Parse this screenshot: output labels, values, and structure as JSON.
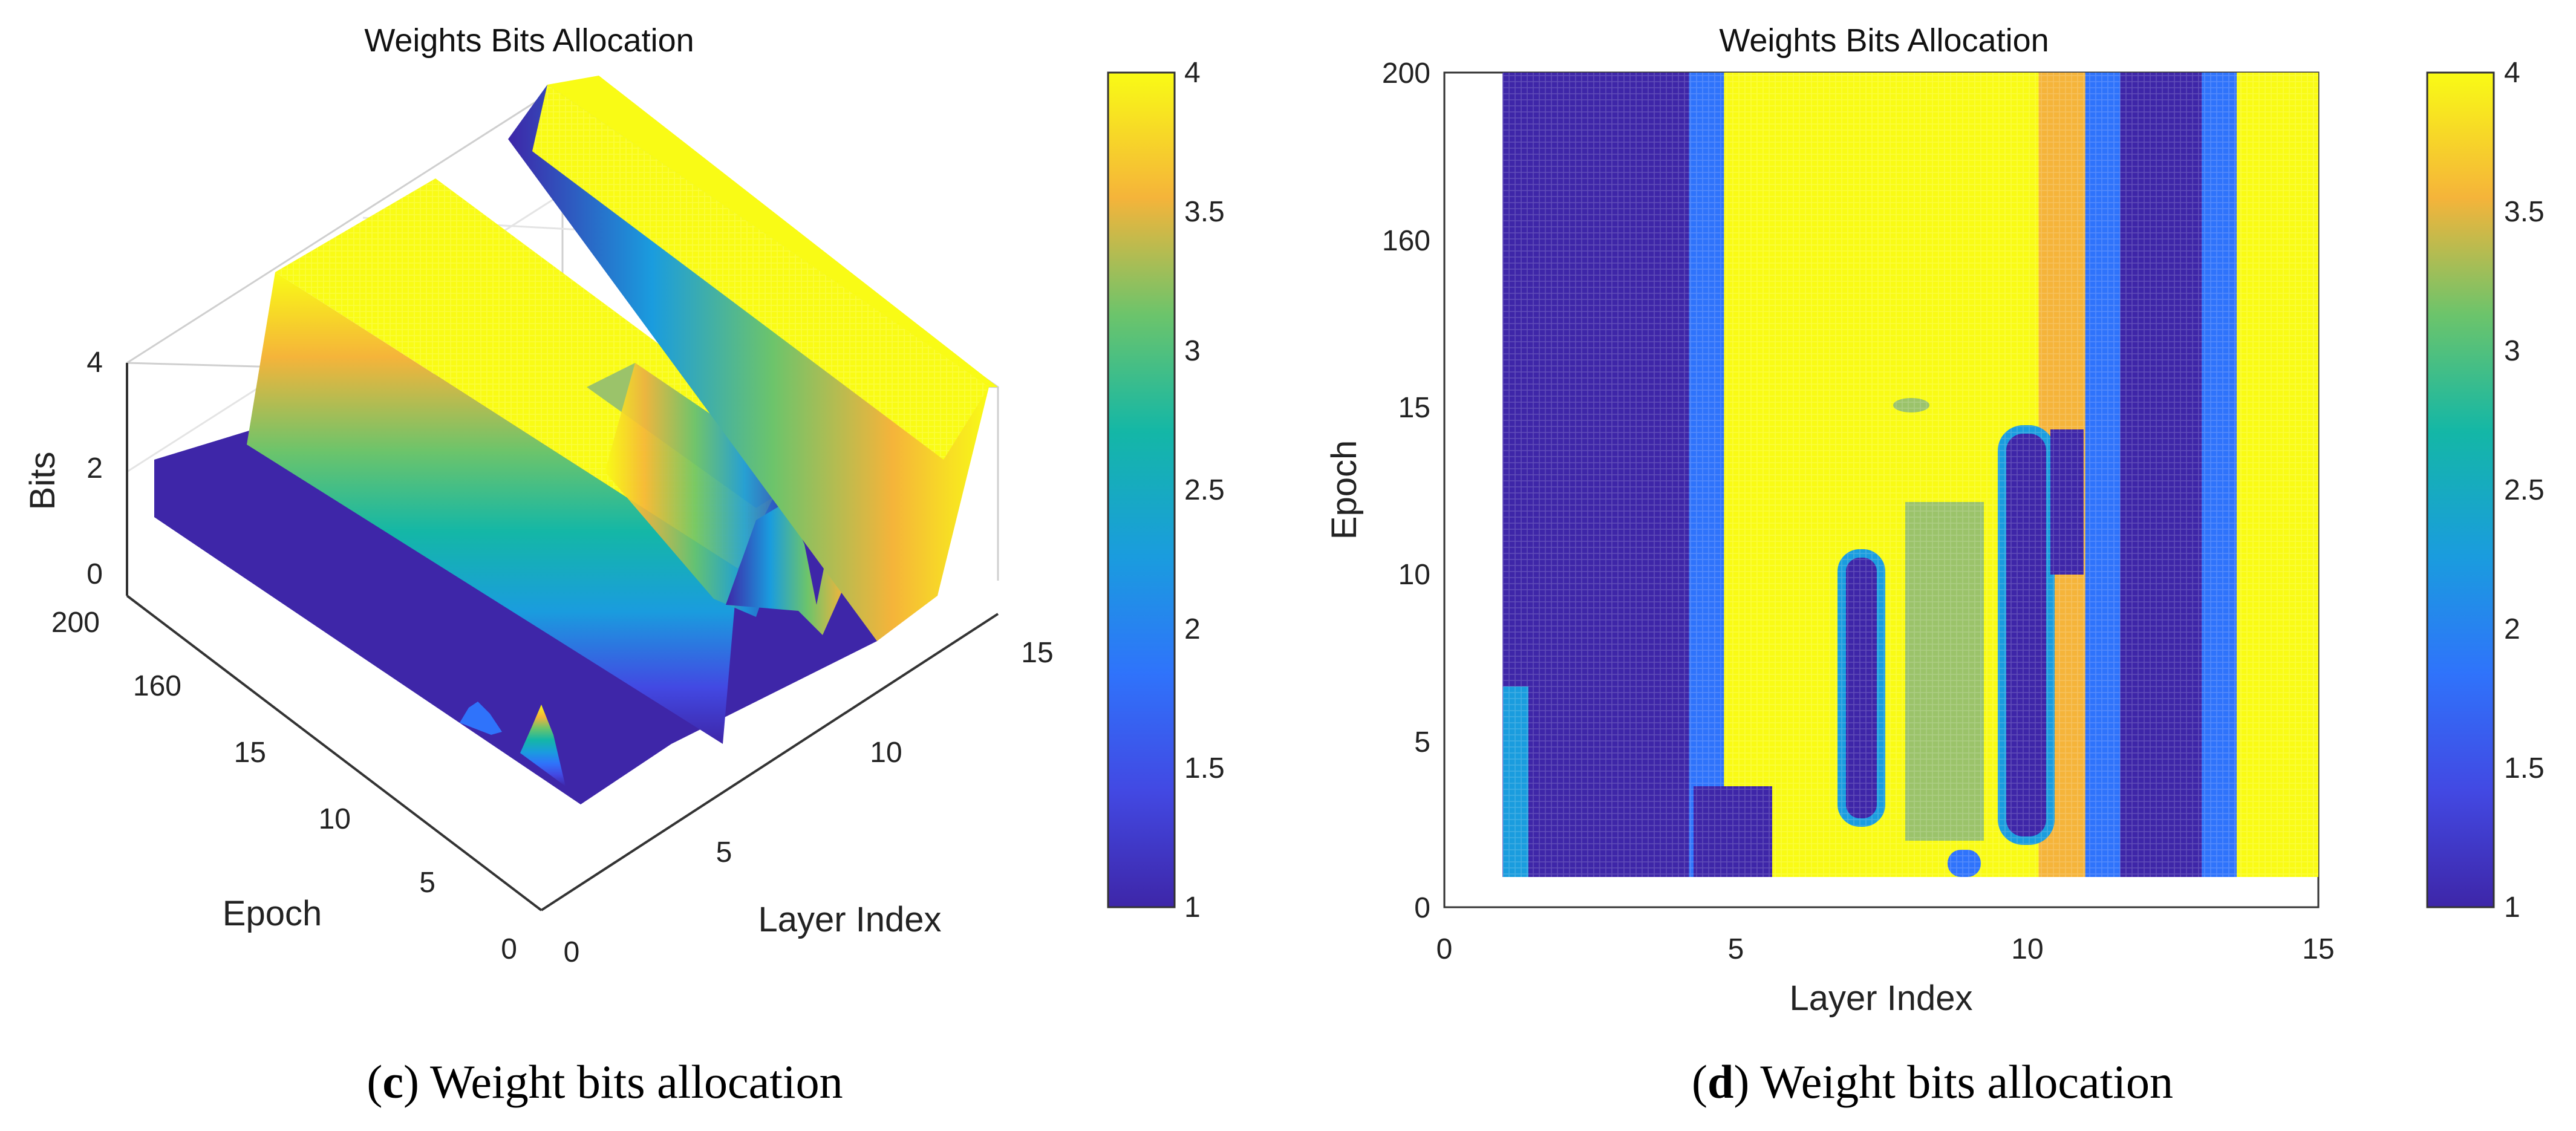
{
  "chart_data": [
    {
      "type": "surface3d",
      "title": "Weights Bits Allocation",
      "xlabel": "Layer Index",
      "ylabel": "Epoch",
      "zlabel": "Bits",
      "x_ticks": [
        "0",
        "5",
        "10",
        "15"
      ],
      "y_ticks": [
        "0",
        "5",
        "10",
        "15",
        "160",
        "200"
      ],
      "z_ticks": [
        "0",
        "2",
        "4"
      ],
      "zlim": [
        0,
        4
      ],
      "colorbar": {
        "min": 1,
        "max": 4,
        "ticks": [
          "1",
          "1.5",
          "2",
          "2.5",
          "3",
          "3.5",
          "4"
        ]
      },
      "caption": {
        "letter": "c",
        "text": " Weight bits allocation"
      }
    },
    {
      "type": "heatmap",
      "title": "Weights Bits Allocation",
      "xlabel": "Layer Index",
      "ylabel": "Epoch",
      "xlim": [
        0,
        15
      ],
      "ylim": [
        0,
        200
      ],
      "x_ticks": [
        "0",
        "5",
        "10",
        "15"
      ],
      "y_ticks": [
        "0",
        "5",
        "10",
        "15",
        "160",
        "200"
      ],
      "colorbar": {
        "min": 1,
        "max": 4,
        "ticks": [
          "1",
          "1.5",
          "2",
          "2.5",
          "3",
          "3.5",
          "4"
        ]
      },
      "layer_bits": [
        {
          "x0": 1.0,
          "x1": 4.2,
          "bits": 1
        },
        {
          "x0": 4.2,
          "x1": 4.8,
          "bits": 2
        },
        {
          "x0": 4.8,
          "x1": 10.2,
          "bits": 4
        },
        {
          "x0": 10.2,
          "x1": 11.0,
          "bits": 3.5
        },
        {
          "x0": 11.0,
          "x1": 11.6,
          "bits": 2
        },
        {
          "x0": 11.6,
          "x1": 13.0,
          "bits": 1
        },
        {
          "x0": 13.0,
          "x1": 13.6,
          "bits": 2
        },
        {
          "x0": 13.6,
          "x1": 15.0,
          "bits": 4
        }
      ],
      "caption": {
        "letter": "d",
        "text": " Weight bits allocation"
      }
    }
  ]
}
